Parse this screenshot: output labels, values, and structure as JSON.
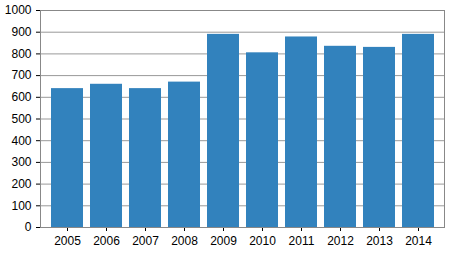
{
  "chart_data": {
    "type": "bar",
    "categories": [
      "2005",
      "2006",
      "2007",
      "2008",
      "2009",
      "2010",
      "2011",
      "2012",
      "2013",
      "2014"
    ],
    "values": [
      640,
      660,
      640,
      670,
      890,
      805,
      878,
      835,
      830,
      890
    ],
    "color": "#3282bd",
    "ylim": [
      0,
      1000
    ],
    "yticks": [
      0,
      100,
      200,
      300,
      400,
      500,
      600,
      700,
      800,
      900,
      1000
    ],
    "grid": true
  }
}
